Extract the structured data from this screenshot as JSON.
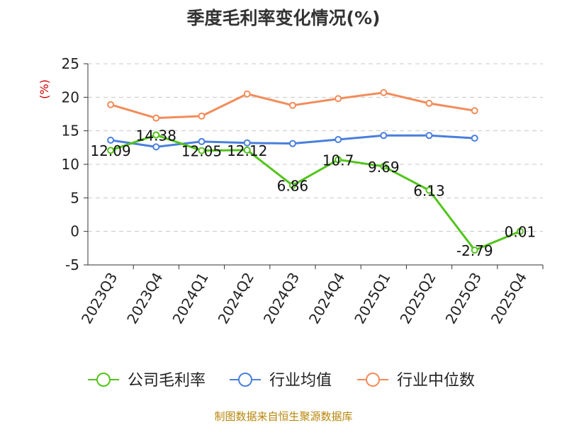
{
  "chart_data": {
    "type": "line",
    "title": "季度毛利率变化情况(%)",
    "ylabel": "(%)",
    "categories": [
      "2023Q3",
      "2023Q4",
      "2024Q1",
      "2024Q2",
      "2024Q3",
      "2024Q4",
      "2025Q1",
      "2025Q2",
      "2025Q3",
      "2025Q4"
    ],
    "ylim": [
      -5,
      25
    ],
    "yticks": [
      -5,
      0,
      5,
      10,
      15,
      20,
      25
    ],
    "grid": true,
    "legend_position": "bottom",
    "series": [
      {
        "name": "公司毛利率",
        "color": "#52c41a",
        "values": [
          12.09,
          14.38,
          12.05,
          12.12,
          6.86,
          10.7,
          9.69,
          6.13,
          -2.79,
          0.01
        ],
        "labels": [
          "12.09",
          "14.38",
          "12.05",
          "12.12",
          "6.86",
          "10.7",
          "9.69",
          "6.13",
          "-2.79",
          "0.01"
        ]
      },
      {
        "name": "行业均值",
        "color": "#4a7fdc",
        "values": [
          13.6,
          12.6,
          13.4,
          13.2,
          13.1,
          13.7,
          14.3,
          14.3,
          13.9,
          null
        ]
      },
      {
        "name": "行业中位数",
        "color": "#f28c5a",
        "values": [
          18.9,
          16.9,
          17.2,
          20.5,
          18.8,
          19.8,
          20.7,
          19.1,
          18.0,
          null
        ]
      }
    ]
  },
  "source": "制图数据来自恒生聚源数据库"
}
